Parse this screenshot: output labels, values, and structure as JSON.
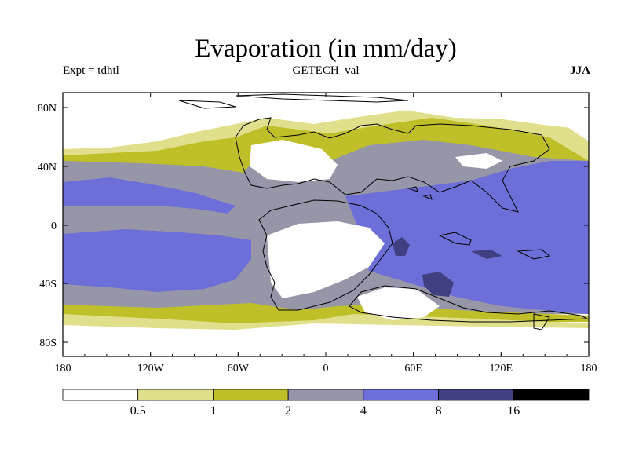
{
  "title": "Evaporation (in mm/day)",
  "experiment_label": "Expt = tdhtl",
  "dataset_label": "GETECH_val",
  "season_label": "JJA",
  "lat_ticks": [
    "80N",
    "40N",
    "0",
    "40S",
    "80S"
  ],
  "lon_ticks": [
    "180",
    "120W",
    "60W",
    "0",
    "60E",
    "120E",
    "180"
  ],
  "colorbar": {
    "boundaries": [
      "0.5",
      "1",
      "2",
      "4",
      "8",
      "16"
    ],
    "colors": [
      "#ffffff",
      "#e0e08c",
      "#bfbf2a",
      "#9696a8",
      "#6e6ed8",
      "#3f3f82",
      "#000000"
    ]
  }
}
